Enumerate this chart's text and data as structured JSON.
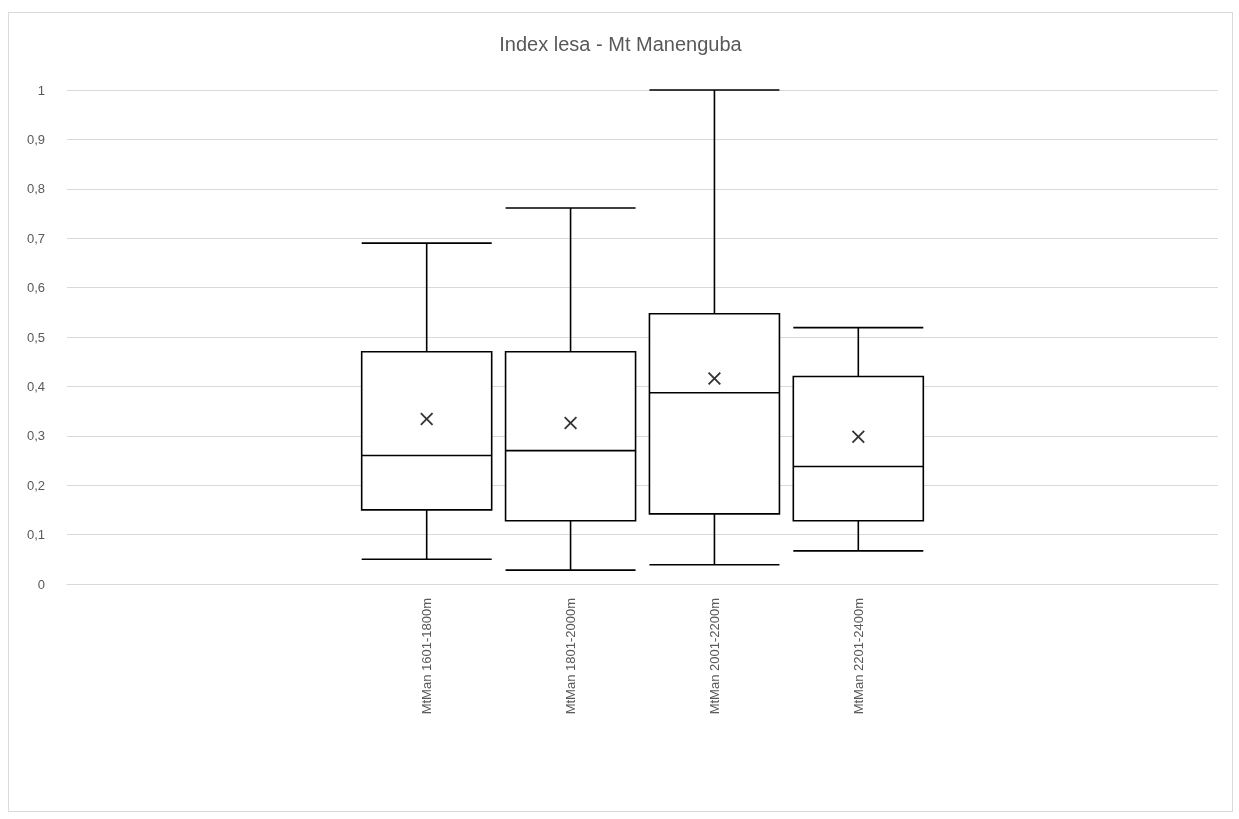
{
  "chart_data": {
    "type": "box",
    "title": "Index lesa - Mt Manenguba",
    "categories": [
      null,
      null,
      "MtMan 1601-1800m",
      "MtMan 1801-2000m",
      "MtMan 2001-2200m",
      "MtMan 2201-2400m",
      null,
      null
    ],
    "series": [
      {
        "color": "#000000",
        "boxes": [
          null,
          null,
          {
            "low": 0.05,
            "q1": 0.15,
            "median": 0.26,
            "q3": 0.47,
            "high": 0.69,
            "mean": 0.334
          },
          {
            "low": 0.028,
            "q1": 0.128,
            "median": 0.27,
            "q3": 0.47,
            "high": 0.761,
            "mean": 0.326
          },
          {
            "low": 0.039,
            "q1": 0.142,
            "median": 0.387,
            "q3": 0.547,
            "high": 1.0,
            "mean": 0.416
          },
          {
            "low": 0.067,
            "q1": 0.128,
            "median": 0.238,
            "q3": 0.42,
            "high": 0.519,
            "mean": 0.298
          },
          null,
          null
        ]
      }
    ],
    "ylim": [
      0,
      1
    ],
    "yticks": [
      0,
      {
        "value": 0.1,
        "label": "0,1"
      },
      {
        "value": 0.2,
        "label": "0,2"
      },
      {
        "value": 0.3,
        "label": "0,3"
      },
      {
        "value": 0.4,
        "label": "0,4"
      },
      {
        "value": 0.5,
        "label": "0,5"
      },
      {
        "value": 0.6,
        "label": "0,6"
      },
      {
        "value": 0.7,
        "label": "0,7"
      },
      {
        "value": 0.8,
        "label": "0,8"
      },
      {
        "value": 0.9,
        "label": "0,9"
      },
      1
    ],
    "grid": "y"
  }
}
